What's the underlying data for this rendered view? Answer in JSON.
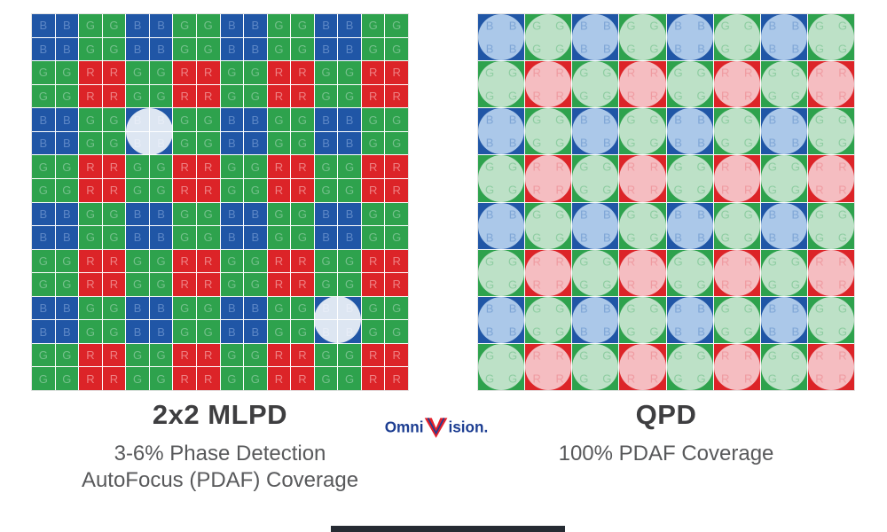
{
  "left_panel": {
    "title": "2x2 MLPD",
    "subtitle_line1": "3-6% Phase Detection",
    "subtitle_line2": "AutoFocus (PDAF) Coverage",
    "grid": {
      "rows": 16,
      "cols": 16,
      "block_size": 2,
      "block_pattern": [
        [
          "B",
          "G"
        ],
        [
          "G",
          "R"
        ]
      ],
      "microlenses": [
        {
          "row": 4,
          "col": 4
        },
        {
          "row": 12,
          "col": 12
        }
      ]
    }
  },
  "right_panel": {
    "title": "QPD",
    "subtitle_line1": "100% PDAF Coverage",
    "grid": {
      "block_rows": 8,
      "block_cols": 8,
      "block_pattern": [
        [
          "B",
          "G"
        ],
        [
          "G",
          "R"
        ]
      ]
    }
  },
  "logo": {
    "text_pre": "Omni",
    "text_post": "ision."
  },
  "colors": {
    "B": "#2056A6",
    "G": "#2EA24D",
    "R": "#DC2428",
    "B_light": "#ABC8E9",
    "G_light": "#BDE1C7",
    "R_light": "#F5BDC1",
    "B_letter": "#5D87C6",
    "G_letter": "#74C08B",
    "R_letter": "#EE8183",
    "B_lens_letter": "#7FA6D6",
    "G_lens_letter": "#8FCDA2",
    "R_lens_letter": "#EF9BA1",
    "title_text": "#3E3E40",
    "subtitle_text": "#58595B",
    "logo_blue": "#1D3E92",
    "logo_red": "#E5202A",
    "grid_line": "#FFFFFF"
  }
}
